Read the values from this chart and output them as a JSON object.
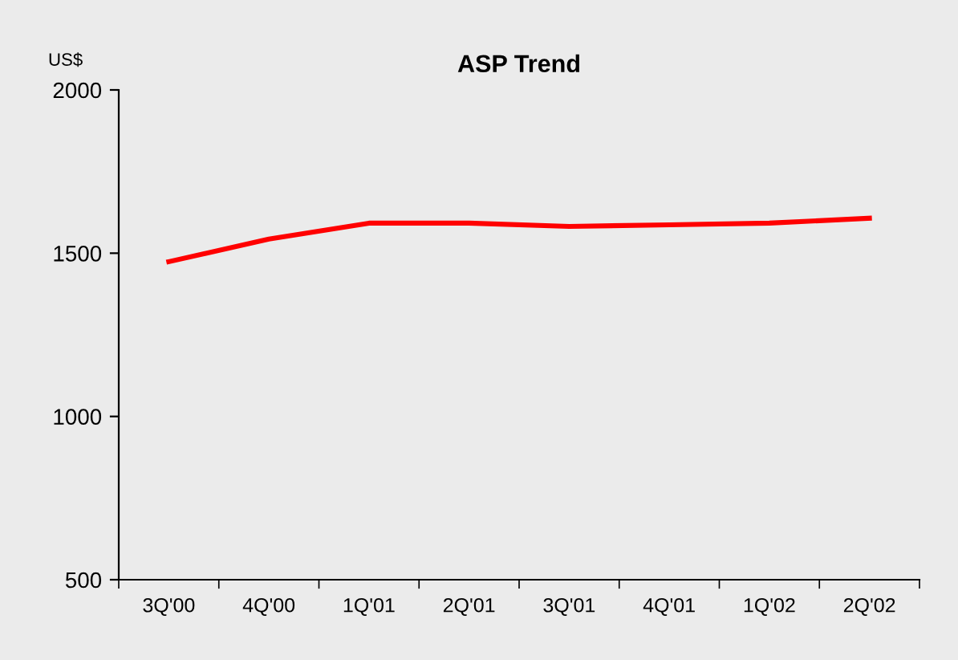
{
  "chart_data": {
    "type": "line",
    "title": "ASP Trend",
    "ylabel": "US$",
    "categories": [
      "3Q'00",
      "4Q'00",
      "1Q'01",
      "2Q'01",
      "3Q'01",
      "4Q'01",
      "1Q'02",
      "2Q'02"
    ],
    "series": [
      {
        "color": "#ff0000",
        "values": [
          1474,
          1543,
          1592,
          1592,
          1582,
          1587,
          1592,
          1607
        ]
      }
    ],
    "ylim": [
      500,
      2000
    ],
    "yticks": [
      500,
      1000,
      1500,
      2000
    ],
    "marker": "none",
    "line_style": "solid"
  }
}
